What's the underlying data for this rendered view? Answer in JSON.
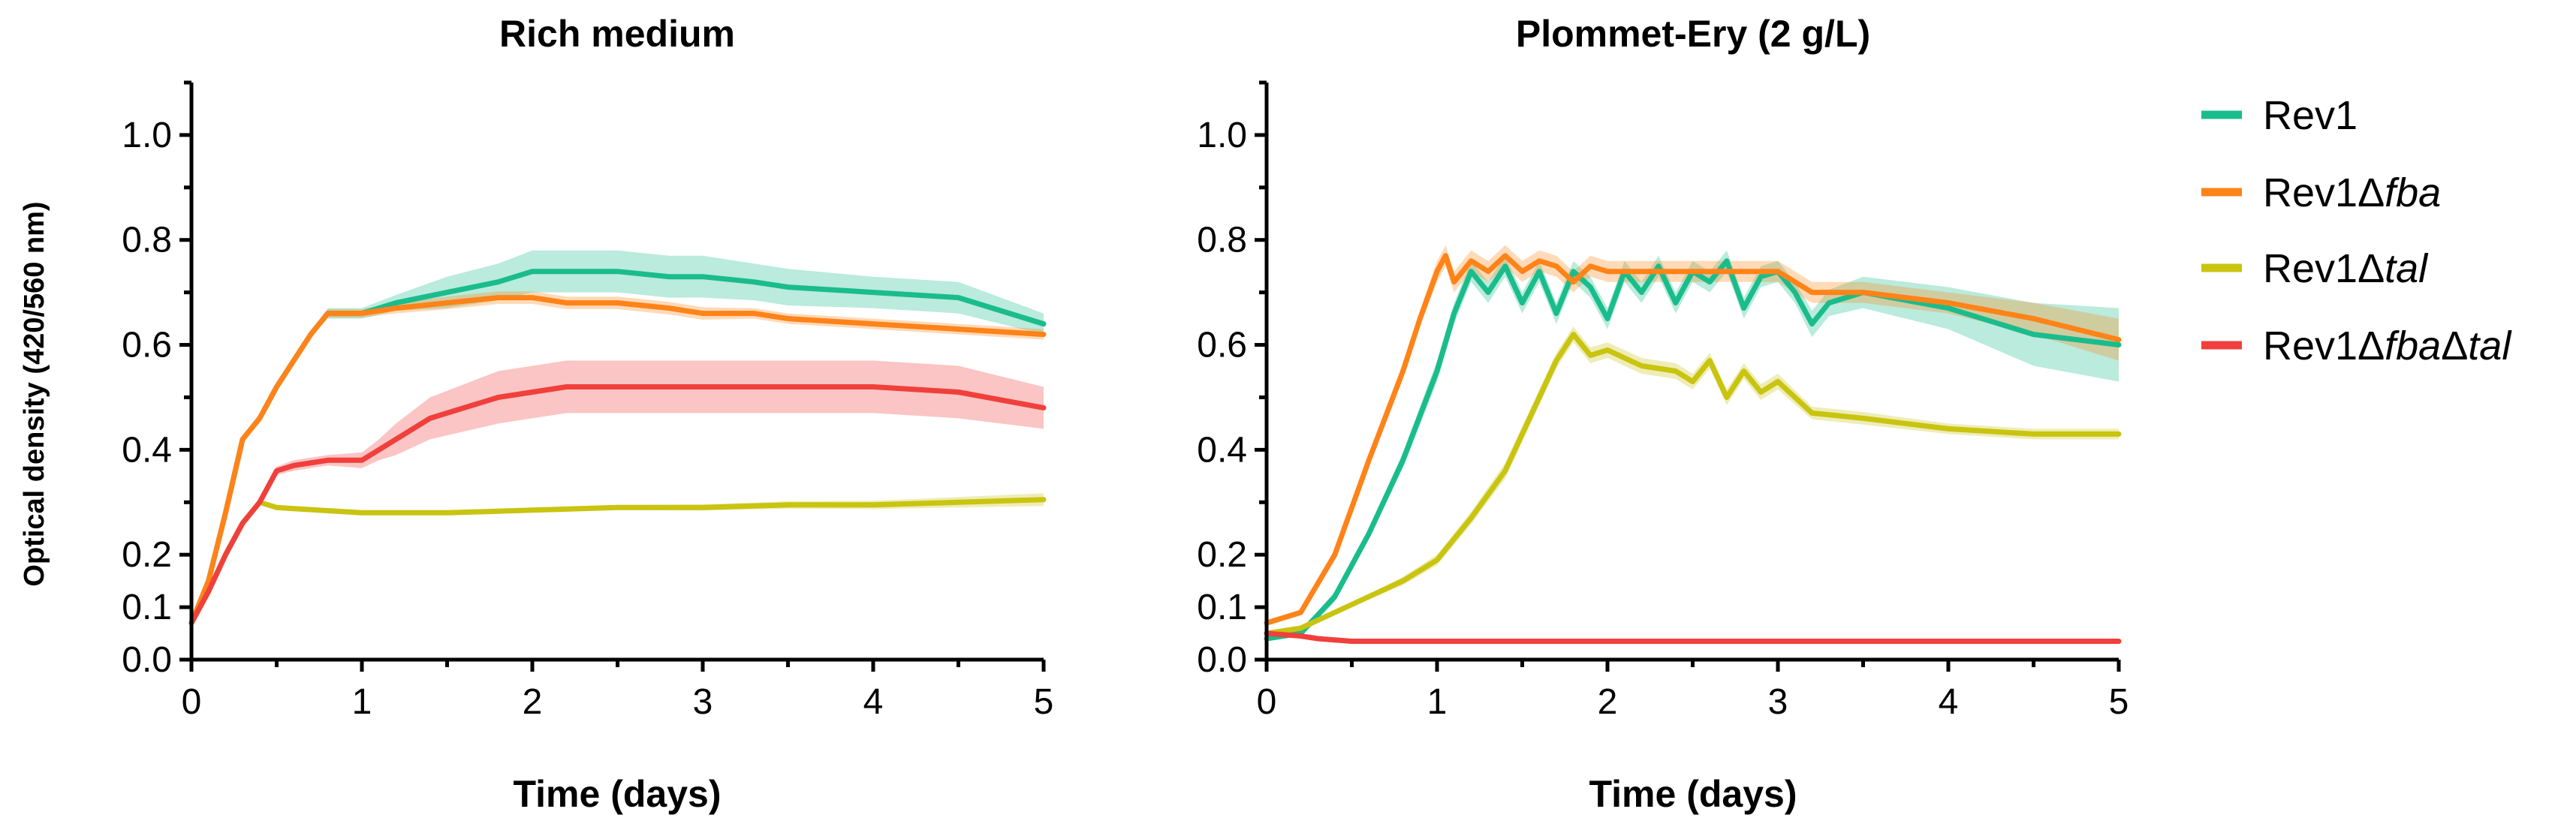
{
  "chart_data": [
    {
      "type": "line",
      "title": "Rich medium",
      "xlabel": "Time (days)",
      "ylabel": "Optical density (420/560 nm)",
      "xlim": [
        0,
        5
      ],
      "ylim": [
        0,
        1.1
      ],
      "xticks": [
        "0",
        "1",
        "2",
        "3",
        "4",
        "5"
      ],
      "yticks": [
        "0.0",
        "0.1",
        "0.2",
        "0.4",
        "0.6",
        "0.8",
        "1.0"
      ],
      "series": [
        {
          "name": "Rev1",
          "color": "#1abc8c",
          "x": [
            0,
            0.1,
            0.2,
            0.3,
            0.4,
            0.5,
            0.6,
            0.7,
            0.8,
            1.0,
            1.2,
            1.5,
            1.8,
            2.0,
            2.2,
            2.5,
            2.8,
            3.0,
            3.3,
            3.5,
            4.0,
            4.5,
            5.0
          ],
          "y": [
            0.07,
            0.15,
            0.28,
            0.42,
            0.46,
            0.52,
            0.57,
            0.62,
            0.66,
            0.66,
            0.68,
            0.7,
            0.72,
            0.74,
            0.74,
            0.74,
            0.73,
            0.73,
            0.72,
            0.71,
            0.7,
            0.69,
            0.64
          ],
          "band": [
            0.005,
            0.005,
            0.005,
            0.005,
            0.005,
            0.005,
            0.005,
            0.005,
            0.01,
            0.01,
            0.015,
            0.03,
            0.035,
            0.04,
            0.04,
            0.04,
            0.04,
            0.04,
            0.035,
            0.035,
            0.03,
            0.03,
            0.02
          ]
        },
        {
          "name": "Rev1Δfba",
          "color": "#ff8318",
          "x": [
            0,
            0.1,
            0.2,
            0.3,
            0.4,
            0.5,
            0.6,
            0.7,
            0.8,
            1.0,
            1.2,
            1.5,
            1.8,
            2.0,
            2.2,
            2.5,
            2.8,
            3.0,
            3.3,
            3.5,
            4.0,
            4.5,
            5.0
          ],
          "y": [
            0.07,
            0.15,
            0.28,
            0.42,
            0.46,
            0.52,
            0.57,
            0.62,
            0.66,
            0.66,
            0.67,
            0.68,
            0.69,
            0.69,
            0.68,
            0.68,
            0.67,
            0.66,
            0.66,
            0.65,
            0.64,
            0.63,
            0.62
          ],
          "band": [
            0.005,
            0.005,
            0.005,
            0.005,
            0.005,
            0.005,
            0.005,
            0.005,
            0.008,
            0.008,
            0.01,
            0.012,
            0.012,
            0.012,
            0.012,
            0.012,
            0.012,
            0.012,
            0.01,
            0.01,
            0.01,
            0.01,
            0.01
          ]
        },
        {
          "name": "Rev1Δtal",
          "color": "#c8c410",
          "x": [
            0,
            0.1,
            0.2,
            0.3,
            0.4,
            0.5,
            1.0,
            1.5,
            2.0,
            2.5,
            3.0,
            3.5,
            4.0,
            4.5,
            5.0
          ],
          "y": [
            0.07,
            0.13,
            0.2,
            0.26,
            0.3,
            0.29,
            0.28,
            0.28,
            0.285,
            0.29,
            0.29,
            0.295,
            0.295,
            0.3,
            0.305
          ],
          "band": [
            0.003,
            0.003,
            0.003,
            0.003,
            0.005,
            0.005,
            0.005,
            0.005,
            0.005,
            0.005,
            0.006,
            0.007,
            0.008,
            0.01,
            0.012
          ]
        },
        {
          "name": "Rev1ΔfbaΔtal",
          "color": "#f0403c",
          "x": [
            0,
            0.1,
            0.2,
            0.3,
            0.4,
            0.5,
            0.6,
            0.8,
            1.0,
            1.1,
            1.2,
            1.4,
            1.6,
            1.8,
            2.0,
            2.2,
            2.5,
            2.8,
            3.0,
            3.5,
            4.0,
            4.5,
            5.0
          ],
          "y": [
            0.07,
            0.13,
            0.2,
            0.26,
            0.3,
            0.36,
            0.37,
            0.38,
            0.38,
            0.4,
            0.42,
            0.46,
            0.48,
            0.5,
            0.51,
            0.52,
            0.52,
            0.52,
            0.52,
            0.52,
            0.52,
            0.51,
            0.48
          ],
          "band": [
            0.003,
            0.003,
            0.003,
            0.005,
            0.005,
            0.008,
            0.01,
            0.01,
            0.015,
            0.02,
            0.03,
            0.04,
            0.045,
            0.05,
            0.05,
            0.05,
            0.05,
            0.05,
            0.05,
            0.05,
            0.05,
            0.05,
            0.04
          ]
        }
      ]
    },
    {
      "type": "line",
      "title": "Plommet-Ery (2 g/L)",
      "xlabel": "Time (days)",
      "ylabel": "",
      "xlim": [
        0,
        5
      ],
      "ylim": [
        0,
        1.1
      ],
      "xticks": [
        "0",
        "1",
        "2",
        "3",
        "4",
        "5"
      ],
      "yticks": [
        "0.0",
        "0.1",
        "0.2",
        "0.4",
        "0.6",
        "0.8",
        "1.0"
      ],
      "series": [
        {
          "name": "Rev1",
          "color": "#1abc8c",
          "x": [
            0,
            0.2,
            0.4,
            0.6,
            0.8,
            1.0,
            1.1,
            1.2,
            1.3,
            1.4,
            1.5,
            1.6,
            1.7,
            1.8,
            1.9,
            2.0,
            2.1,
            2.2,
            2.3,
            2.4,
            2.5,
            2.6,
            2.7,
            2.8,
            2.9,
            3.0,
            3.1,
            3.2,
            3.3,
            3.5,
            4.0,
            4.5,
            5.0
          ],
          "y": [
            0.04,
            0.05,
            0.12,
            0.24,
            0.38,
            0.55,
            0.66,
            0.74,
            0.7,
            0.75,
            0.68,
            0.74,
            0.66,
            0.74,
            0.71,
            0.65,
            0.74,
            0.7,
            0.75,
            0.68,
            0.74,
            0.72,
            0.76,
            0.67,
            0.73,
            0.74,
            0.7,
            0.64,
            0.68,
            0.7,
            0.67,
            0.62,
            0.6
          ],
          "band": [
            0.005,
            0.005,
            0.01,
            0.01,
            0.015,
            0.02,
            0.02,
            0.02,
            0.02,
            0.02,
            0.02,
            0.02,
            0.02,
            0.02,
            0.02,
            0.02,
            0.02,
            0.02,
            0.02,
            0.02,
            0.02,
            0.02,
            0.02,
            0.02,
            0.02,
            0.02,
            0.02,
            0.025,
            0.025,
            0.03,
            0.04,
            0.06,
            0.07
          ]
        },
        {
          "name": "Rev1Δfba",
          "color": "#ff8318",
          "x": [
            0,
            0.2,
            0.4,
            0.6,
            0.8,
            0.9,
            1.0,
            1.05,
            1.1,
            1.2,
            1.3,
            1.4,
            1.5,
            1.6,
            1.7,
            1.8,
            1.9,
            2.0,
            2.2,
            2.4,
            2.6,
            2.8,
            3.0,
            3.2,
            3.5,
            4.0,
            4.5,
            5.0
          ],
          "y": [
            0.07,
            0.09,
            0.2,
            0.38,
            0.55,
            0.65,
            0.74,
            0.77,
            0.72,
            0.76,
            0.74,
            0.77,
            0.74,
            0.76,
            0.75,
            0.72,
            0.75,
            0.74,
            0.74,
            0.74,
            0.74,
            0.74,
            0.74,
            0.7,
            0.7,
            0.68,
            0.65,
            0.61
          ],
          "band": [
            0.005,
            0.005,
            0.01,
            0.01,
            0.015,
            0.015,
            0.02,
            0.02,
            0.02,
            0.02,
            0.02,
            0.02,
            0.02,
            0.02,
            0.02,
            0.02,
            0.02,
            0.02,
            0.02,
            0.02,
            0.02,
            0.02,
            0.02,
            0.02,
            0.02,
            0.02,
            0.03,
            0.04
          ]
        },
        {
          "name": "Rev1Δtal",
          "color": "#c8c410",
          "x": [
            0,
            0.2,
            0.4,
            0.6,
            0.8,
            1.0,
            1.2,
            1.4,
            1.6,
            1.7,
            1.8,
            1.9,
            2.0,
            2.2,
            2.4,
            2.5,
            2.6,
            2.7,
            2.8,
            2.9,
            3.0,
            3.2,
            3.5,
            4.0,
            4.5,
            5.0
          ],
          "y": [
            0.05,
            0.06,
            0.09,
            0.12,
            0.15,
            0.19,
            0.27,
            0.36,
            0.5,
            0.57,
            0.62,
            0.58,
            0.59,
            0.56,
            0.55,
            0.53,
            0.57,
            0.5,
            0.55,
            0.51,
            0.53,
            0.47,
            0.46,
            0.44,
            0.43,
            0.43
          ],
          "band": [
            0.003,
            0.003,
            0.005,
            0.005,
            0.008,
            0.01,
            0.012,
            0.015,
            0.015,
            0.015,
            0.015,
            0.015,
            0.015,
            0.015,
            0.015,
            0.015,
            0.015,
            0.015,
            0.015,
            0.015,
            0.015,
            0.012,
            0.012,
            0.01,
            0.01,
            0.01
          ]
        },
        {
          "name": "Rev1ΔfbaΔtal",
          "color": "#f0403c",
          "x": [
            0,
            0.2,
            0.3,
            0.5,
            1.0,
            2.0,
            3.0,
            4.0,
            5.0
          ],
          "y": [
            0.05,
            0.045,
            0.04,
            0.035,
            0.035,
            0.035,
            0.035,
            0.035,
            0.035
          ],
          "band": [
            0.002,
            0.002,
            0.002,
            0.002,
            0.002,
            0.002,
            0.002,
            0.002,
            0.002
          ]
        }
      ]
    }
  ],
  "legend": {
    "position": "right",
    "items": [
      {
        "label": "Rev1",
        "base": "Rev1",
        "parts": [],
        "color": "#1abc8c"
      },
      {
        "label": "Rev1Δfba",
        "base": "Rev1",
        "parts": [
          [
            "Δ",
            false
          ],
          [
            "fba",
            true
          ]
        ],
        "color": "#ff8318"
      },
      {
        "label": "Rev1Δtal",
        "base": "Rev1",
        "parts": [
          [
            "Δ",
            false
          ],
          [
            "tal",
            true
          ]
        ],
        "color": "#c8c410"
      },
      {
        "label": "Rev1ΔfbaΔtal",
        "base": "Rev1",
        "parts": [
          [
            "Δ",
            false
          ],
          [
            "fba",
            true
          ],
          [
            "Δ",
            false
          ],
          [
            "tal",
            true
          ]
        ],
        "color": "#f0403c"
      }
    ]
  }
}
